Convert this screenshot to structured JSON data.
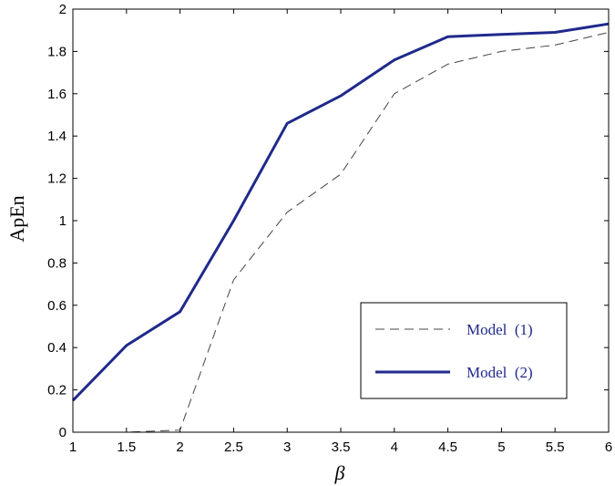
{
  "chart_data": {
    "type": "line",
    "title": "",
    "xlabel": "β",
    "ylabel": "ApEn",
    "xlim": [
      1,
      6
    ],
    "ylim": [
      0,
      2
    ],
    "x_ticks": [
      "1",
      "1.5",
      "2",
      "2.5",
      "3",
      "3.5",
      "4",
      "4.5",
      "5",
      "5.5",
      "6"
    ],
    "y_ticks": [
      "0",
      "0.2",
      "0.4",
      "0.6",
      "0.8",
      "1",
      "1.2",
      "1.4",
      "1.6",
      "1.8",
      "2"
    ],
    "grid": false,
    "legend_position": "lower-right",
    "series": [
      {
        "name": "Model  (1)",
        "style": "dashed",
        "color": "#444444",
        "x": [
          1,
          1.5,
          2,
          2.5,
          3,
          3.5,
          4,
          4.5,
          5,
          5.5,
          6
        ],
        "y": [
          0.0,
          0.0,
          0.01,
          0.72,
          1.04,
          1.22,
          1.6,
          1.74,
          1.8,
          1.83,
          1.89
        ]
      },
      {
        "name": "Model  (2)",
        "style": "solid",
        "color": "#1f2a8c",
        "x": [
          1,
          1.5,
          2,
          2.5,
          3,
          3.5,
          4,
          4.5,
          5,
          5.5,
          6
        ],
        "y": [
          0.15,
          0.41,
          0.57,
          1.0,
          1.46,
          1.59,
          1.76,
          1.87,
          1.88,
          1.89,
          1.93
        ]
      }
    ]
  }
}
